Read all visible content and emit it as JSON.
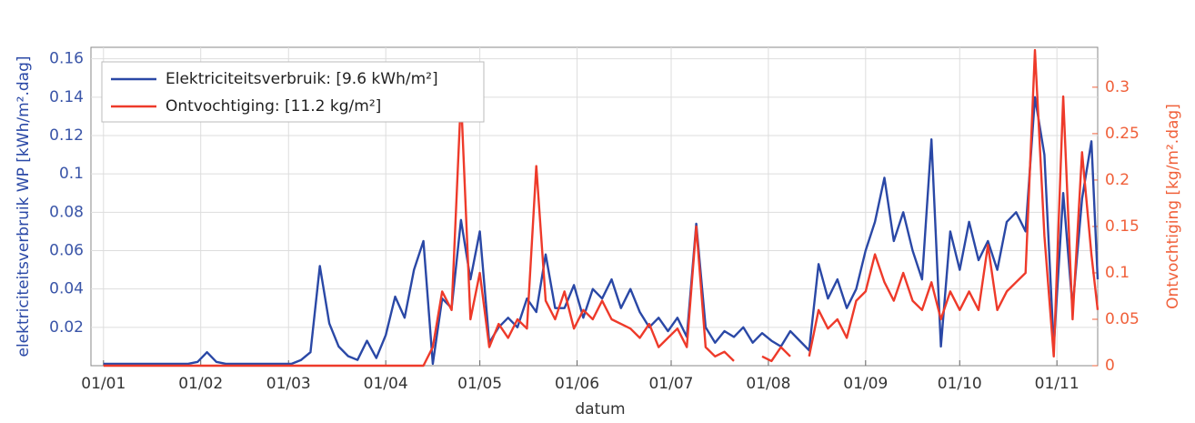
{
  "chart_data": {
    "type": "line",
    "xlabel": "datum",
    "ylabel": "elektriciteitsverbruik WP [kWh/m².dag]",
    "y2label": "Ontvochtiging [kg/m².dag]",
    "x": [
      0,
      3,
      6,
      9,
      12,
      15,
      18,
      21,
      24,
      27,
      30,
      33,
      36,
      39,
      42,
      45,
      48,
      51,
      54,
      57,
      60,
      63,
      66,
      69,
      72,
      75,
      78,
      81,
      84,
      87,
      90,
      93,
      96,
      99,
      102,
      105,
      108,
      111,
      114,
      117,
      120,
      123,
      126,
      129,
      132,
      135,
      138,
      141,
      144,
      147,
      150,
      153,
      156,
      159,
      162,
      165,
      168,
      171,
      174,
      177,
      180,
      183,
      186,
      189,
      192,
      195,
      198,
      201,
      204,
      207,
      210,
      213,
      216,
      219,
      222,
      225,
      228,
      231,
      234,
      237,
      240,
      243,
      246,
      249,
      252,
      255,
      258,
      261,
      264,
      267,
      270,
      273,
      276,
      279,
      282,
      285,
      288,
      291,
      294,
      297,
      300,
      303,
      306,
      309,
      312,
      315,
      317
    ],
    "series": [
      {
        "name": "Elektriciteitsverbruik: [9.6 kWh/m²]",
        "color": "#2a48a6",
        "axis": "y",
        "values": [
          0.001,
          0.001,
          0.001,
          0.001,
          0.001,
          0.001,
          0.001,
          0.001,
          0.001,
          0.001,
          0.002,
          0.007,
          0.002,
          0.001,
          0.001,
          0.001,
          0.001,
          0.001,
          0.001,
          0.001,
          0.001,
          0.003,
          0.007,
          0.052,
          0.022,
          0.01,
          0.005,
          0.003,
          0.013,
          0.004,
          0.016,
          0.036,
          0.025,
          0.05,
          0.065,
          0.001,
          0.035,
          0.03,
          0.076,
          0.045,
          0.07,
          0.012,
          0.02,
          0.025,
          0.02,
          0.035,
          0.028,
          0.058,
          0.03,
          0.03,
          0.042,
          0.025,
          0.04,
          0.035,
          0.045,
          0.03,
          0.04,
          0.028,
          0.02,
          0.025,
          0.018,
          0.025,
          0.015,
          0.074,
          0.02,
          0.012,
          0.018,
          0.015,
          0.02,
          0.012,
          0.017,
          0.013,
          0.01,
          0.018,
          0.013,
          0.008,
          0.053,
          0.035,
          0.045,
          0.03,
          0.04,
          0.06,
          0.075,
          0.098,
          0.065,
          0.08,
          0.06,
          0.045,
          0.118,
          0.01,
          0.07,
          0.05,
          0.075,
          0.055,
          0.065,
          0.05,
          0.075,
          0.08,
          0.07,
          0.14,
          0.11,
          0.01,
          0.09,
          0.03,
          0.087,
          0.117,
          0.045
        ]
      },
      {
        "name": "Ontvochtiging: [11.2 kg/m²]",
        "color": "#ee3a2a",
        "axis": "y2",
        "values": [
          0,
          0,
          0,
          0,
          0,
          0,
          0,
          0,
          0,
          0,
          0,
          0,
          0,
          0,
          0,
          0,
          0,
          0,
          0,
          0,
          0,
          0,
          0,
          0,
          0,
          0,
          0,
          0,
          0,
          0,
          0,
          0,
          0,
          0,
          0,
          0.02,
          0.08,
          0.06,
          0.29,
          0.05,
          0.1,
          0.02,
          0.045,
          0.03,
          0.05,
          0.04,
          0.215,
          0.07,
          0.05,
          0.08,
          0.04,
          0.06,
          0.05,
          0.07,
          0.05,
          0.045,
          0.04,
          0.03,
          0.045,
          0.02,
          0.03,
          0.04,
          0.02,
          0.15,
          0.02,
          0.01,
          0.015,
          0.005,
          null,
          null,
          0.01,
          0.005,
          0.02,
          0.01,
          null,
          0.01,
          0.06,
          0.04,
          0.05,
          0.03,
          0.07,
          0.08,
          0.12,
          0.09,
          0.07,
          0.1,
          0.07,
          0.06,
          0.09,
          0.05,
          0.08,
          0.06,
          0.08,
          0.06,
          0.13,
          0.06,
          0.08,
          0.09,
          0.1,
          0.34,
          0.14,
          0.01,
          0.29,
          0.05,
          0.23,
          0.12,
          0.06
        ]
      }
    ],
    "xlim": [
      -4,
      317
    ],
    "xticks": [
      {
        "value": 0,
        "label": "01/01"
      },
      {
        "value": 31,
        "label": "01/02"
      },
      {
        "value": 59,
        "label": "01/03"
      },
      {
        "value": 90,
        "label": "01/04"
      },
      {
        "value": 120,
        "label": "01/05"
      },
      {
        "value": 151,
        "label": "01/06"
      },
      {
        "value": 181,
        "label": "01/07"
      },
      {
        "value": 212,
        "label": "01/08"
      },
      {
        "value": 243,
        "label": "01/09"
      },
      {
        "value": 273,
        "label": "01/10"
      },
      {
        "value": 304,
        "label": "01/11"
      }
    ],
    "ylim": [
      0,
      0.166
    ],
    "yticks": [
      0.02,
      0.04,
      0.06,
      0.08,
      0.1,
      0.12,
      0.14,
      0.16
    ],
    "y2lim": [
      0,
      0.343
    ],
    "y2ticks": [
      0,
      0.05,
      0.1,
      0.15,
      0.2,
      0.25,
      0.3
    ],
    "grid": true,
    "legend": "upper-left"
  }
}
